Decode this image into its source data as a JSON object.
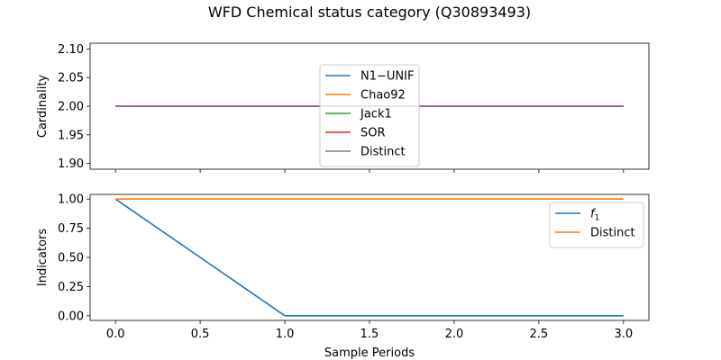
{
  "chart_data": {
    "title": "WFD Chemical status category (Q30893493)",
    "xlabel": "Sample Periods",
    "x_ticks": [
      "0.0",
      "0.5",
      "1.0",
      "1.5",
      "2.0",
      "2.5",
      "3.0"
    ],
    "xlim": [
      -0.15,
      3.15
    ],
    "panels": [
      {
        "type": "line",
        "ylabel": "Cardinality",
        "ylim": [
          1.89,
          2.11
        ],
        "y_ticks": [
          "1.90",
          "1.95",
          "2.00",
          "2.05",
          "2.10"
        ],
        "legend_position": "upper-center",
        "series": [
          {
            "name": "N1−UNIF",
            "color": "#1f77b4",
            "x": [
              0,
              1,
              2,
              3
            ],
            "values": [
              2,
              2,
              2,
              2
            ]
          },
          {
            "name": "Chao92",
            "color": "#ff7f0e",
            "x": [
              0,
              1,
              2,
              3
            ],
            "values": [
              2,
              2,
              2,
              2
            ]
          },
          {
            "name": "Jack1",
            "color": "#2ca02c",
            "x": [
              0,
              1,
              2,
              3
            ],
            "values": [
              2,
              2,
              2,
              2
            ]
          },
          {
            "name": "SOR",
            "color": "#d62728",
            "x": [
              0,
              1,
              2,
              3
            ],
            "values": [
              2,
              2,
              2,
              2
            ]
          },
          {
            "name": "Distinct",
            "color": "#9467bd",
            "x": [
              0,
              1,
              2,
              3
            ],
            "values": [
              2,
              2,
              2,
              2
            ]
          }
        ]
      },
      {
        "type": "line",
        "ylabel": "Indicators",
        "ylim": [
          -0.04,
          1.04
        ],
        "y_ticks": [
          "0.00",
          "0.25",
          "0.50",
          "0.75",
          "1.00"
        ],
        "legend_position": "upper-right",
        "series": [
          {
            "name": "f",
            "name_subscript": "1",
            "color": "#1f77b4",
            "x": [
              0,
              1,
              2,
              3
            ],
            "values": [
              1,
              0,
              0,
              0
            ]
          },
          {
            "name": "Distinct",
            "color": "#ff7f0e",
            "x": [
              0,
              1,
              2,
              3
            ],
            "values": [
              1,
              1,
              1,
              1
            ]
          }
        ]
      }
    ]
  }
}
